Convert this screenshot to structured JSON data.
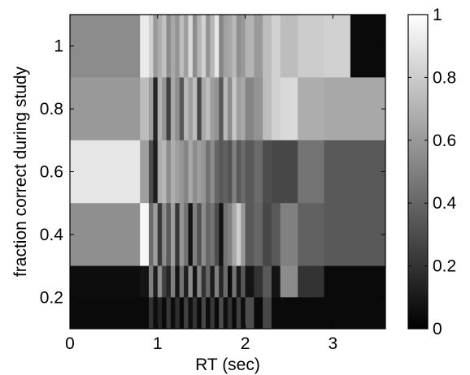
{
  "chart_data": {
    "type": "heatmap",
    "xlabel": "RT (sec)",
    "ylabel": "fraction correct during study",
    "xlim": [
      0,
      3.6
    ],
    "ylim": [
      0.1,
      1.1
    ],
    "x_ticks": [
      0,
      1,
      2,
      3
    ],
    "y_ticks": [
      0.2,
      0.4,
      0.6,
      0.8,
      1
    ],
    "colorbar": {
      "min": 0,
      "max": 1,
      "ticks": [
        0,
        0.2,
        0.4,
        0.6,
        0.8,
        1
      ],
      "colormap": "gray"
    },
    "x_edges": [
      0,
      0.8,
      0.9,
      0.95,
      1.0,
      1.05,
      1.1,
      1.15,
      1.2,
      1.25,
      1.3,
      1.35,
      1.4,
      1.45,
      1.5,
      1.55,
      1.6,
      1.65,
      1.7,
      1.75,
      1.8,
      1.85,
      1.9,
      1.95,
      2.0,
      2.1,
      2.2,
      2.3,
      2.4,
      2.6,
      2.9,
      3.2,
      3.6
    ],
    "rows": [
      {
        "y_range": [
          0.9,
          1.1
        ],
        "values": [
          0.55,
          0.92,
          0.82,
          0.6,
          0.68,
          0.76,
          0.55,
          0.66,
          0.58,
          0.74,
          0.62,
          0.85,
          0.55,
          0.7,
          0.82,
          0.58,
          0.72,
          0.9,
          0.52,
          0.63,
          0.66,
          0.72,
          0.56,
          0.6,
          0.7,
          0.6,
          0.74,
          0.82,
          0.74,
          0.8,
          0.82,
          0.04
        ]
      },
      {
        "y_range": [
          0.7,
          0.9
        ],
        "values": [
          0.6,
          0.74,
          0.62,
          0.15,
          0.7,
          0.58,
          0.25,
          0.66,
          0.56,
          0.35,
          0.72,
          0.62,
          0.74,
          0.28,
          0.66,
          0.74,
          0.62,
          0.58,
          0.35,
          0.72,
          0.55,
          0.78,
          0.62,
          0.66,
          0.52,
          0.58,
          0.74,
          0.82,
          0.85,
          0.68,
          0.66,
          0.66
        ]
      },
      {
        "y_range": [
          0.5,
          0.7
        ],
        "values": [
          0.9,
          0.62,
          0.3,
          0.12,
          0.68,
          0.72,
          0.55,
          0.68,
          0.62,
          0.58,
          0.52,
          0.66,
          0.55,
          0.62,
          0.58,
          0.44,
          0.55,
          0.4,
          0.35,
          0.38,
          0.33,
          0.5,
          0.35,
          0.42,
          0.35,
          0.42,
          0.3,
          0.28,
          0.28,
          0.45,
          0.35,
          0.35
        ]
      },
      {
        "y_range": [
          0.3,
          0.5
        ],
        "values": [
          0.56,
          0.97,
          0.42,
          0.62,
          0.22,
          0.55,
          0.35,
          0.62,
          0.22,
          0.58,
          0.45,
          0.08,
          0.5,
          0.32,
          0.55,
          0.4,
          0.45,
          0.3,
          0.08,
          0.45,
          0.5,
          0.66,
          0.8,
          0.6,
          0.35,
          0.4,
          0.28,
          0.35,
          0.5,
          0.38,
          0.35,
          0.35
        ]
      },
      {
        "y_range": [
          0.1,
          0.3
        ],
        "values": [
          0.05,
          0.08,
          0.5,
          0.12,
          0.55,
          0.25,
          0.15,
          0.5,
          0.08,
          0.45,
          0.12,
          0.55,
          0.08,
          0.52,
          0.2,
          0.4,
          0.1,
          0.5,
          0.15,
          0.42,
          0.05,
          0.45,
          0.1,
          0.35,
          0.08,
          0.2,
          0.35,
          0.08,
          0.55,
          0.2,
          0.04,
          0.04
        ]
      },
      {
        "y_range": [
          0.1,
          0.2
        ],
        "values": [
          0.04,
          0.04,
          0.2,
          0.05,
          0.15,
          0.04,
          0.22,
          0.05,
          0.18,
          0.04,
          0.25,
          0.06,
          0.2,
          0.04,
          0.28,
          0.05,
          0.22,
          0.04,
          0.3,
          0.06,
          0.2,
          0.04,
          0.25,
          0.05,
          0.3,
          0.04,
          0.28,
          0.04,
          0.04,
          0.04,
          0.04,
          0.04
        ]
      }
    ]
  }
}
